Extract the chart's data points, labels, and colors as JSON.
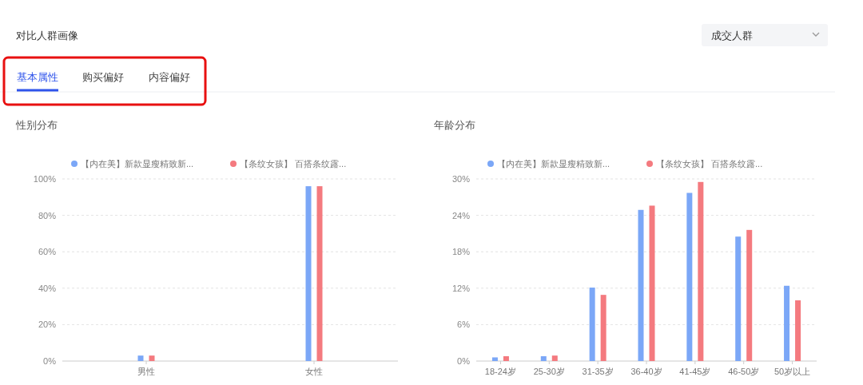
{
  "chart_data": [
    {
      "type": "bar",
      "title": "性别分布",
      "annotations": [
        "对比人群画像",
        "基本属性",
        "购买偏好",
        "内容偏好",
        "成交人群"
      ],
      "categories": [
        "男性",
        "女性"
      ],
      "series": [
        {
          "name": "【内在美】新款显瘦精致新...",
          "color": "#7ba7f7",
          "values": [
            3,
            96
          ]
        },
        {
          "name": "【条纹女孩】 百搭条纹露...",
          "color": "#f47a7f",
          "values": [
            3,
            96
          ]
        }
      ],
      "ylim": [
        0,
        100
      ],
      "yticks": [
        {
          "value": 0,
          "label": "0%"
        },
        {
          "value": 20,
          "label": "20%"
        },
        {
          "value": 40,
          "label": "40%"
        },
        {
          "value": 60,
          "label": "60%"
        },
        {
          "value": 80,
          "label": "80%"
        },
        {
          "value": 100,
          "label": "100%"
        }
      ],
      "grid": "y",
      "legend": "top"
    },
    {
      "type": "bar",
      "title": "年龄分布",
      "categories": [
        "18-24岁",
        "25-30岁",
        "31-35岁",
        "36-40岁",
        "41-45岁",
        "46-50岁",
        "50岁以上"
      ],
      "series": [
        {
          "name": "【内在美】新款显瘦精致新...",
          "color": "#7ba7f7",
          "values": [
            0.6,
            0.8,
            12.1,
            24.9,
            27.7,
            20.5,
            12.4
          ]
        },
        {
          "name": "【条纹女孩】 百搭条纹露...",
          "color": "#f47a7f",
          "values": [
            0.8,
            0.9,
            10.9,
            25.6,
            29.5,
            21.6,
            10.0
          ]
        }
      ],
      "ylim": [
        0,
        30
      ],
      "yticks": [
        {
          "value": 0,
          "label": "0%"
        },
        {
          "value": 6,
          "label": "6%"
        },
        {
          "value": 12,
          "label": "12%"
        },
        {
          "value": 18,
          "label": "18%"
        },
        {
          "value": 24,
          "label": "24%"
        },
        {
          "value": 30,
          "label": "30%"
        }
      ],
      "grid": "y",
      "legend": "top"
    }
  ]
}
